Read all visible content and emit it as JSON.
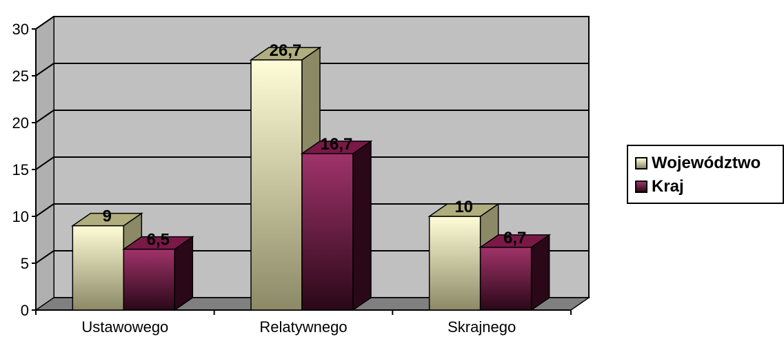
{
  "chart_data": {
    "type": "bar",
    "categories": [
      "Ustawowego",
      "Relatywnego",
      "Skrajnego"
    ],
    "series": [
      {
        "name": "Województwo",
        "values": [
          9,
          26.7,
          10
        ],
        "labels": [
          "9",
          "26,7",
          "10"
        ],
        "color_light": "#fffdd8",
        "color_dark": "#8c8a66"
      },
      {
        "name": "Kraj",
        "values": [
          6.5,
          16.7,
          6.7
        ],
        "labels": [
          "6,5",
          "16,7",
          "6,7"
        ],
        "color_light": "#a0336a",
        "color_dark": "#2a0818"
      }
    ],
    "ylim": [
      0,
      30
    ],
    "yticks": [
      "0",
      "5",
      "10",
      "15",
      "20",
      "25",
      "30"
    ],
    "grid": true,
    "legend_position": "right",
    "plot_background": "#c0c0c0",
    "floor_color": "#808080"
  }
}
